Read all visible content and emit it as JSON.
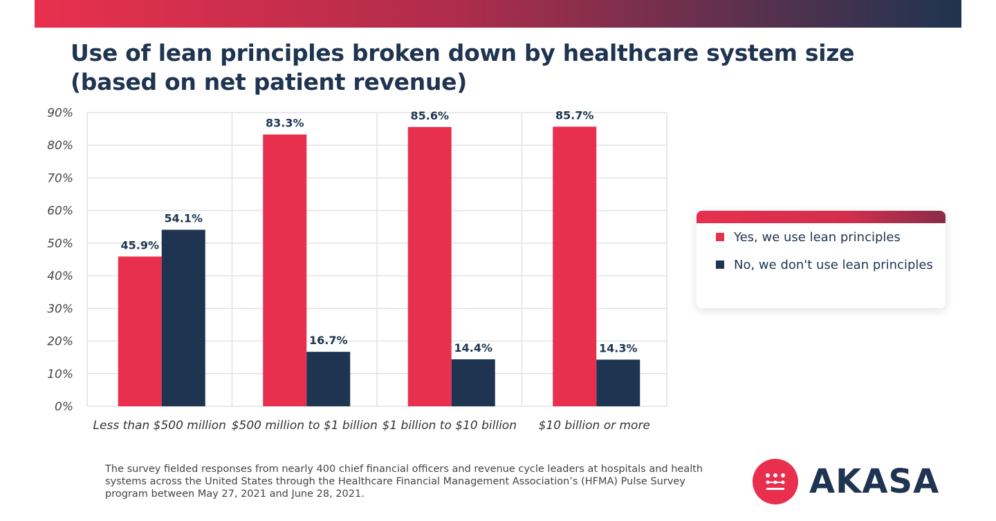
{
  "title": "Use of lean principles broken down by healthcare system size (based on net patient revenue)",
  "chart_data": {
    "type": "bar",
    "title": "Use of lean principles broken down by healthcare system size (based on net patient revenue)",
    "categories": [
      "Less than $500 million",
      "$500 million to $1 billion",
      "$1 billion to $10 billion",
      "$10 billion or more"
    ],
    "series": [
      {
        "name": "Yes, we use lean principles",
        "values": [
          45.9,
          83.3,
          85.6,
          85.7
        ],
        "labels": [
          "45.9%",
          "83.3%",
          "85.6%",
          "85.7%"
        ],
        "color": "#e8304e"
      },
      {
        "name": "No, we don't use lean principles",
        "values": [
          54.1,
          16.7,
          14.4,
          14.3
        ],
        "labels": [
          "54.1%",
          "16.7%",
          "14.4%",
          "14.3%"
        ],
        "color": "#1e3450"
      }
    ],
    "ylim": [
      0,
      90
    ],
    "yticks": [
      "0%",
      "10%",
      "20%",
      "30%",
      "40%",
      "50%",
      "60%",
      "70%",
      "80%",
      "90%"
    ],
    "xlabel": "",
    "ylabel": "",
    "grid": true,
    "legend_placement": "right"
  },
  "footnote": "The survey fielded responses from nearly 400 chief financial officers and revenue cycle leaders at hospitals and health systems across the United States through the Healthcare Financial Management Association’s (HFMA) Pulse Survey program between May 27, 2021 and June 28, 2021.",
  "logo": {
    "text": "AKASA",
    "color": "#e8304e"
  }
}
